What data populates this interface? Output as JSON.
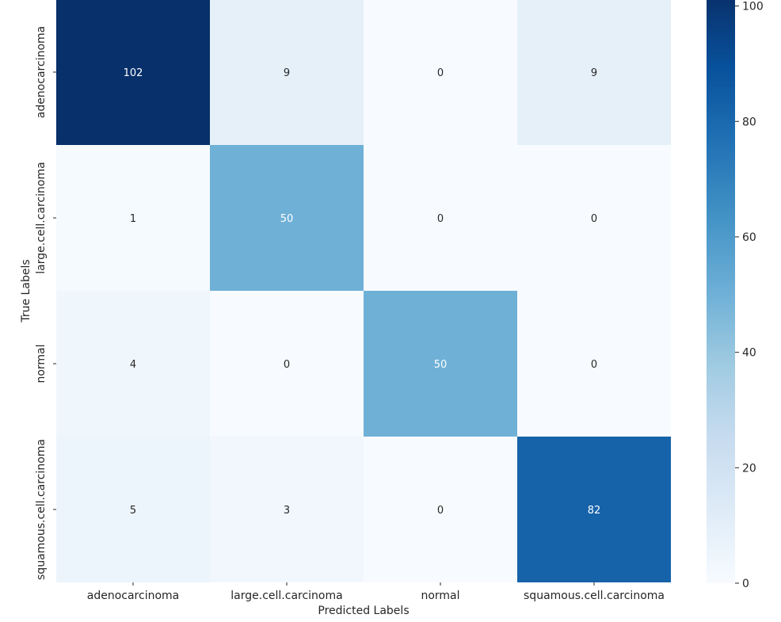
{
  "chart_data": {
    "type": "heatmap",
    "title": "",
    "xlabel": "Predicted Labels",
    "ylabel": "True Labels",
    "x_categories": [
      "adenocarcinoma",
      "large.cell.carcinoma",
      "normal",
      "squamous.cell.carcinoma"
    ],
    "y_categories": [
      "adenocarcinoma",
      "large.cell.carcinoma",
      "normal",
      "squamous.cell.carcinoma"
    ],
    "values": [
      [
        102,
        9,
        0,
        9
      ],
      [
        1,
        50,
        0,
        0
      ],
      [
        4,
        0,
        50,
        0
      ],
      [
        5,
        3,
        0,
        82
      ]
    ],
    "colormap": "Blues",
    "color_range": [
      0,
      102
    ],
    "colorbar_ticks": [
      0,
      20,
      40,
      60,
      80,
      100
    ],
    "annotations": true,
    "grid": false
  }
}
